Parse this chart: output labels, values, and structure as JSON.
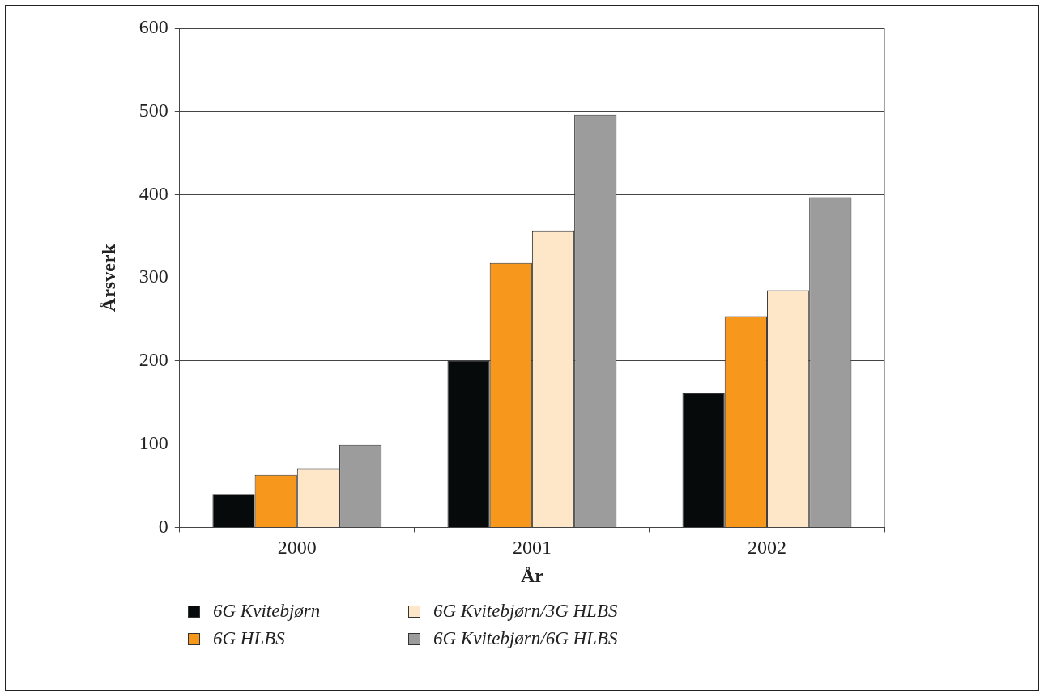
{
  "chart_data": {
    "type": "bar",
    "xlabel": "År",
    "ylabel": "Årsverk",
    "categories": [
      "2000",
      "2001",
      "2002"
    ],
    "series": [
      {
        "name": "6G Kvitebjørn",
        "color": "#060a0b",
        "values": [
          40,
          200,
          161
        ]
      },
      {
        "name": "6G HLBS",
        "color": "#f7981d",
        "values": [
          63,
          318,
          254
        ]
      },
      {
        "name": "6G Kvitebjørn/3G HLBS",
        "color": "#fee6c9",
        "values": [
          71,
          357,
          285
        ]
      },
      {
        "name": "6G Kvitebjørn/6G HLBS",
        "color": "#9c9c9d",
        "values": [
          99,
          496,
          397
        ]
      }
    ],
    "ylim": [
      0,
      600
    ],
    "yticks": [
      0,
      100,
      200,
      300,
      400,
      500,
      600
    ],
    "grid": "y",
    "legend": "bottom"
  }
}
